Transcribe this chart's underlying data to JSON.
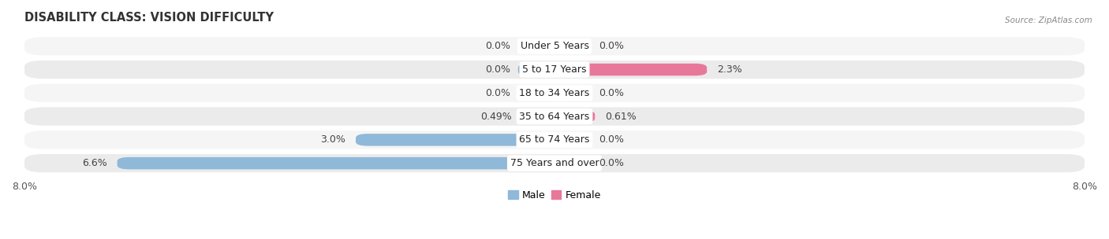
{
  "title": "DISABILITY CLASS: VISION DIFFICULTY",
  "source": "Source: ZipAtlas.com",
  "categories": [
    "Under 5 Years",
    "5 to 17 Years",
    "18 to 34 Years",
    "35 to 64 Years",
    "65 to 74 Years",
    "75 Years and over"
  ],
  "male_values": [
    0.0,
    0.0,
    0.0,
    0.49,
    3.0,
    6.6
  ],
  "female_values": [
    0.0,
    2.3,
    0.0,
    0.61,
    0.0,
    0.0
  ],
  "male_labels": [
    "0.0%",
    "0.0%",
    "0.0%",
    "0.49%",
    "3.0%",
    "6.6%"
  ],
  "female_labels": [
    "0.0%",
    "2.3%",
    "0.0%",
    "0.61%",
    "0.0%",
    "0.0%"
  ],
  "male_color": "#90b8d8",
  "female_color": "#e8789a",
  "female_stub_color": "#f0aabb",
  "row_bg_even": "#f5f5f5",
  "row_bg_odd": "#ebebeb",
  "xlim": 8.0,
  "stub_size": 0.55,
  "title_fontsize": 10.5,
  "tick_fontsize": 9,
  "label_fontsize": 9,
  "cat_fontsize": 9
}
